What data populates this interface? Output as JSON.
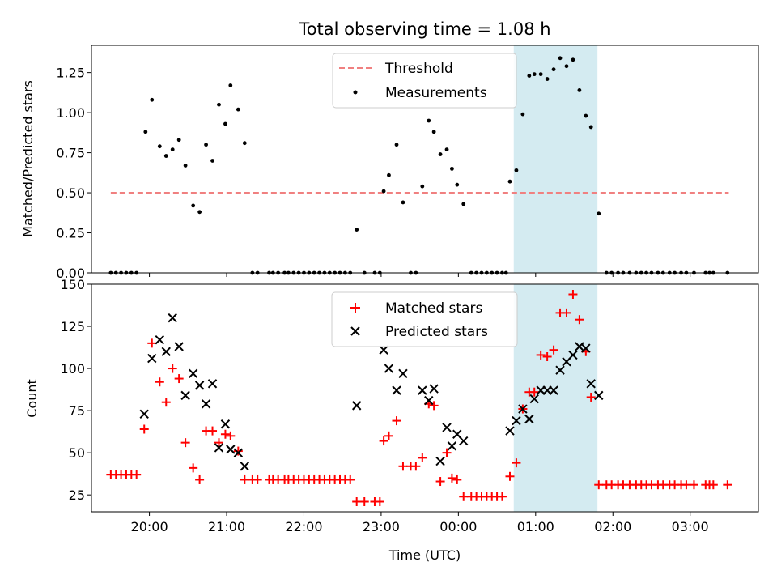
{
  "chart_data": [
    {
      "type": "scatter",
      "title": "Total observing time = 1.08 h",
      "ylabel": "Matched/Predicted stars",
      "xlim": [
        "19:15",
        "03:53"
      ],
      "ylim": [
        0,
        1.42
      ],
      "yticks": [
        "0.00",
        "0.25",
        "0.50",
        "0.75",
        "1.00",
        "1.25"
      ],
      "legend_position": "upper center",
      "highlight_region": {
        "start": "00:43",
        "end": "01:48",
        "color": "#d4ebf1"
      },
      "threshold": {
        "name": "Threshold",
        "value": 0.5,
        "x_start": "19:30",
        "x_end": "03:30",
        "color": "#f08080"
      },
      "series": [
        {
          "name": "Measurements",
          "color": "#000000",
          "points": [
            [
              "19:30",
              0
            ],
            [
              "19:34",
              0
            ],
            [
              "19:38",
              0
            ],
            [
              "19:42",
              0
            ],
            [
              "19:46",
              0
            ],
            [
              "19:50",
              0
            ],
            [
              "19:57",
              0.88
            ],
            [
              "20:02",
              1.08
            ],
            [
              "20:08",
              0.79
            ],
            [
              "20:13",
              0.73
            ],
            [
              "20:18",
              0.77
            ],
            [
              "20:23",
              0.83
            ],
            [
              "20:28",
              0.67
            ],
            [
              "20:34",
              0.42
            ],
            [
              "20:39",
              0.38
            ],
            [
              "20:44",
              0.8
            ],
            [
              "20:49",
              0.7
            ],
            [
              "20:54",
              1.05
            ],
            [
              "20:59",
              0.93
            ],
            [
              "21:03",
              1.17
            ],
            [
              "21:09",
              1.02
            ],
            [
              "21:14",
              0.81
            ],
            [
              "21:20",
              0
            ],
            [
              "21:24",
              0
            ],
            [
              "21:33",
              0
            ],
            [
              "21:36",
              0
            ],
            [
              "21:40",
              0
            ],
            [
              "21:45",
              0
            ],
            [
              "21:48",
              0
            ],
            [
              "21:52",
              0
            ],
            [
              "21:56",
              0
            ],
            [
              "22:00",
              0
            ],
            [
              "22:04",
              0
            ],
            [
              "22:08",
              0
            ],
            [
              "22:12",
              0
            ],
            [
              "22:16",
              0
            ],
            [
              "22:20",
              0
            ],
            [
              "22:24",
              0
            ],
            [
              "22:28",
              0
            ],
            [
              "22:32",
              0
            ],
            [
              "22:36",
              0
            ],
            [
              "22:41",
              0.27
            ],
            [
              "22:47",
              0
            ],
            [
              "22:55",
              0
            ],
            [
              "22:59",
              0
            ],
            [
              "23:02",
              0.51
            ],
            [
              "23:06",
              0.61
            ],
            [
              "23:12",
              0.8
            ],
            [
              "23:17",
              0.44
            ],
            [
              "23:23",
              0
            ],
            [
              "23:27",
              0
            ],
            [
              "23:32",
              0.54
            ],
            [
              "23:37",
              0.95
            ],
            [
              "23:41",
              0.88
            ],
            [
              "23:46",
              0.74
            ],
            [
              "23:51",
              0.77
            ],
            [
              "23:55",
              0.65
            ],
            [
              "23:59",
              0.55
            ],
            [
              "00:04",
              0.43
            ],
            [
              "00:10",
              0
            ],
            [
              "00:14",
              0
            ],
            [
              "00:18",
              0
            ],
            [
              "00:22",
              0
            ],
            [
              "00:26",
              0
            ],
            [
              "00:30",
              0
            ],
            [
              "00:34",
              0
            ],
            [
              "00:37",
              0
            ],
            [
              "00:40",
              0.57
            ],
            [
              "00:45",
              0.64
            ],
            [
              "00:50",
              0.99
            ],
            [
              "00:55",
              1.23
            ],
            [
              "00:59",
              1.24
            ],
            [
              "01:04",
              1.24
            ],
            [
              "01:09",
              1.21
            ],
            [
              "01:14",
              1.27
            ],
            [
              "01:19",
              1.34
            ],
            [
              "01:24",
              1.29
            ],
            [
              "01:29",
              1.33
            ],
            [
              "01:34",
              1.14
            ],
            [
              "01:39",
              0.98
            ],
            [
              "01:43",
              0.91
            ],
            [
              "01:49",
              0.37
            ],
            [
              "01:55",
              0
            ],
            [
              "01:59",
              0
            ],
            [
              "02:04",
              0
            ],
            [
              "02:08",
              0
            ],
            [
              "02:13",
              0
            ],
            [
              "02:18",
              0
            ],
            [
              "02:22",
              0
            ],
            [
              "02:26",
              0
            ],
            [
              "02:30",
              0
            ],
            [
              "02:35",
              0
            ],
            [
              "02:39",
              0
            ],
            [
              "02:44",
              0
            ],
            [
              "02:48",
              0
            ],
            [
              "02:53",
              0
            ],
            [
              "02:57",
              0
            ],
            [
              "03:03",
              0
            ],
            [
              "03:12",
              0
            ],
            [
              "03:15",
              0
            ],
            [
              "03:18",
              0
            ],
            [
              "03:29",
              0
            ]
          ]
        }
      ]
    },
    {
      "type": "scatter",
      "xlabel": "Time (UTC)",
      "ylabel": "Count",
      "xlim": [
        "19:15",
        "03:53"
      ],
      "ylim": [
        15,
        150
      ],
      "xticks": [
        "20:00",
        "21:00",
        "22:00",
        "23:00",
        "00:00",
        "01:00",
        "02:00",
        "03:00"
      ],
      "yticks": [
        "25",
        "50",
        "75",
        "100",
        "125",
        "150"
      ],
      "legend_position": "upper center",
      "highlight_region": {
        "start": "00:43",
        "end": "01:48",
        "color": "#d4ebf1"
      },
      "series": [
        {
          "name": "Matched stars",
          "marker": "+",
          "color": "#ff0000",
          "points": [
            [
              "19:30",
              37
            ],
            [
              "19:34",
              37
            ],
            [
              "19:38",
              37
            ],
            [
              "19:42",
              37
            ],
            [
              "19:46",
              37
            ],
            [
              "19:50",
              37
            ],
            [
              "19:56",
              64
            ],
            [
              "20:02",
              115
            ],
            [
              "20:08",
              92
            ],
            [
              "20:13",
              80
            ],
            [
              "20:18",
              100
            ],
            [
              "20:23",
              94
            ],
            [
              "20:28",
              56
            ],
            [
              "20:34",
              41
            ],
            [
              "20:39",
              34
            ],
            [
              "20:44",
              63
            ],
            [
              "20:49",
              63
            ],
            [
              "20:54",
              56
            ],
            [
              "20:59",
              61
            ],
            [
              "21:03",
              60
            ],
            [
              "21:09",
              51
            ],
            [
              "21:14",
              34
            ],
            [
              "21:20",
              34
            ],
            [
              "21:24",
              34
            ],
            [
              "21:33",
              34
            ],
            [
              "21:36",
              34
            ],
            [
              "21:40",
              34
            ],
            [
              "21:45",
              34
            ],
            [
              "21:48",
              34
            ],
            [
              "21:52",
              34
            ],
            [
              "21:56",
              34
            ],
            [
              "22:00",
              34
            ],
            [
              "22:04",
              34
            ],
            [
              "22:08",
              34
            ],
            [
              "22:12",
              34
            ],
            [
              "22:16",
              34
            ],
            [
              "22:20",
              34
            ],
            [
              "22:24",
              34
            ],
            [
              "22:28",
              34
            ],
            [
              "22:32",
              34
            ],
            [
              "22:36",
              34
            ],
            [
              "22:41",
              21
            ],
            [
              "22:47",
              21
            ],
            [
              "22:55",
              21
            ],
            [
              "22:59",
              21
            ],
            [
              "23:02",
              57
            ],
            [
              "23:06",
              60
            ],
            [
              "23:12",
              69
            ],
            [
              "23:17",
              42
            ],
            [
              "23:23",
              42
            ],
            [
              "23:27",
              42
            ],
            [
              "23:32",
              47
            ],
            [
              "23:37",
              79
            ],
            [
              "23:41",
              78
            ],
            [
              "23:46",
              33
            ],
            [
              "23:51",
              50
            ],
            [
              "23:55",
              35
            ],
            [
              "23:59",
              34
            ],
            [
              "00:04",
              24
            ],
            [
              "00:10",
              24
            ],
            [
              "00:14",
              24
            ],
            [
              "00:18",
              24
            ],
            [
              "00:22",
              24
            ],
            [
              "00:26",
              24
            ],
            [
              "00:30",
              24
            ],
            [
              "00:34",
              24
            ],
            [
              "00:40",
              36
            ],
            [
              "00:45",
              44
            ],
            [
              "00:50",
              76
            ],
            [
              "00:55",
              86
            ],
            [
              "00:59",
              86
            ],
            [
              "01:04",
              108
            ],
            [
              "01:09",
              107
            ],
            [
              "01:14",
              111
            ],
            [
              "01:19",
              133
            ],
            [
              "01:24",
              133
            ],
            [
              "01:29",
              144
            ],
            [
              "01:34",
              129
            ],
            [
              "01:39",
              110
            ],
            [
              "01:43",
              83
            ],
            [
              "01:49",
              31
            ],
            [
              "01:55",
              31
            ],
            [
              "01:59",
              31
            ],
            [
              "02:04",
              31
            ],
            [
              "02:08",
              31
            ],
            [
              "02:13",
              31
            ],
            [
              "02:18",
              31
            ],
            [
              "02:22",
              31
            ],
            [
              "02:26",
              31
            ],
            [
              "02:30",
              31
            ],
            [
              "02:35",
              31
            ],
            [
              "02:39",
              31
            ],
            [
              "02:44",
              31
            ],
            [
              "02:48",
              31
            ],
            [
              "02:53",
              31
            ],
            [
              "02:57",
              31
            ],
            [
              "03:03",
              31
            ],
            [
              "03:12",
              31
            ],
            [
              "03:15",
              31
            ],
            [
              "03:18",
              31
            ],
            [
              "03:29",
              31
            ]
          ]
        },
        {
          "name": "Predicted stars",
          "marker": "x",
          "color": "#000000",
          "points": [
            [
              "19:56",
              73
            ],
            [
              "20:02",
              106
            ],
            [
              "20:08",
              117
            ],
            [
              "20:13",
              110
            ],
            [
              "20:18",
              130
            ],
            [
              "20:23",
              113
            ],
            [
              "20:28",
              84
            ],
            [
              "20:34",
              97
            ],
            [
              "20:39",
              90
            ],
            [
              "20:44",
              79
            ],
            [
              "20:49",
              91
            ],
            [
              "20:54",
              53
            ],
            [
              "20:59",
              67
            ],
            [
              "21:03",
              52
            ],
            [
              "21:09",
              50
            ],
            [
              "21:14",
              42
            ],
            [
              "22:41",
              78
            ],
            [
              "23:02",
              111
            ],
            [
              "23:06",
              100
            ],
            [
              "23:12",
              87
            ],
            [
              "23:17",
              97
            ],
            [
              "23:32",
              87
            ],
            [
              "23:37",
              81
            ],
            [
              "23:41",
              88
            ],
            [
              "23:46",
              45
            ],
            [
              "23:51",
              65
            ],
            [
              "23:55",
              54
            ],
            [
              "23:59",
              61
            ],
            [
              "00:04",
              57
            ],
            [
              "00:40",
              63
            ],
            [
              "00:45",
              69
            ],
            [
              "00:50",
              76
            ],
            [
              "00:55",
              70
            ],
            [
              "00:59",
              82
            ],
            [
              "01:04",
              87
            ],
            [
              "01:09",
              87
            ],
            [
              "01:14",
              87
            ],
            [
              "01:19",
              99
            ],
            [
              "01:24",
              104
            ],
            [
              "01:29",
              108
            ],
            [
              "01:34",
              113
            ],
            [
              "01:39",
              112
            ],
            [
              "01:43",
              91
            ],
            [
              "01:49",
              84
            ]
          ]
        }
      ]
    }
  ]
}
